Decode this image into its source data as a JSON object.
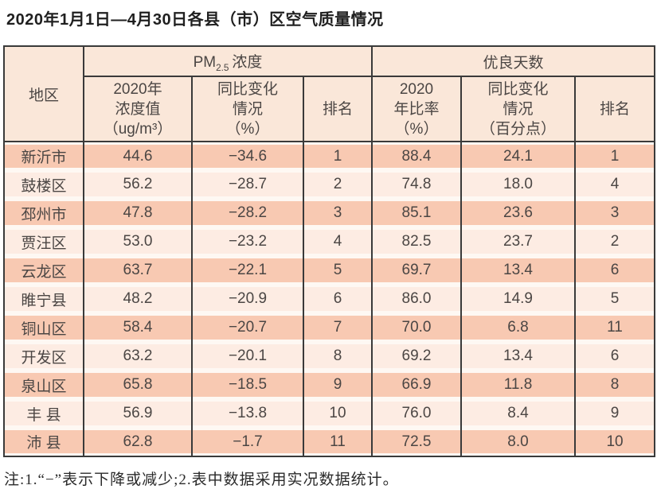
{
  "title": "2020年1月1日—4月30日各县（市）区空气质量情况",
  "table": {
    "region_header": "地区",
    "groups": [
      {
        "prefix": "PM",
        "sub": "2.5",
        "suffix": "浓度"
      },
      {
        "label": "优良天数"
      }
    ],
    "subheaders": [
      "2020年\n浓度值\n（ug/m³）",
      "同比变化\n情况\n（%）",
      "排名",
      "2020\n年比率\n（%）",
      "同比变化\n情况\n（百分点）",
      "排名"
    ],
    "rows": [
      [
        "新沂市",
        "44.6",
        "−34.6",
        "1",
        "88.4",
        "24.1",
        "1"
      ],
      [
        "鼓楼区",
        "56.2",
        "−28.7",
        "2",
        "74.8",
        "18.0",
        "4"
      ],
      [
        "邳州市",
        "47.8",
        "−28.2",
        "3",
        "85.1",
        "23.6",
        "3"
      ],
      [
        "贾汪区",
        "53.0",
        "−23.2",
        "4",
        "82.5",
        "23.7",
        "2"
      ],
      [
        "云龙区",
        "63.7",
        "−22.1",
        "5",
        "69.7",
        "13.4",
        "6"
      ],
      [
        "睢宁县",
        "48.2",
        "−20.9",
        "6",
        "86.0",
        "14.9",
        "5"
      ],
      [
        "铜山区",
        "58.4",
        "−20.7",
        "7",
        "70.0",
        "6.8",
        "11"
      ],
      [
        "开发区",
        "63.2",
        "−20.1",
        "8",
        "69.2",
        "13.4",
        "6"
      ],
      [
        "泉山区",
        "65.8",
        "−18.5",
        "9",
        "66.9",
        "11.8",
        "8"
      ],
      [
        "丰 县",
        "56.9",
        "−13.8",
        "10",
        "76.0",
        "8.4",
        "9"
      ],
      [
        "沛 县",
        "62.8",
        "−1.7",
        "11",
        "72.5",
        "8.0",
        "10"
      ]
    ]
  },
  "note": "注:1.“−”表示下降或减少;2.表中数据采用实况数据统计。",
  "colors": {
    "band_odd": "#f8c9b2",
    "band_even": "#fdece3",
    "row_gap": "#fef8f3",
    "header_bg": "#fae7d9",
    "border": "#3a3a3a"
  }
}
